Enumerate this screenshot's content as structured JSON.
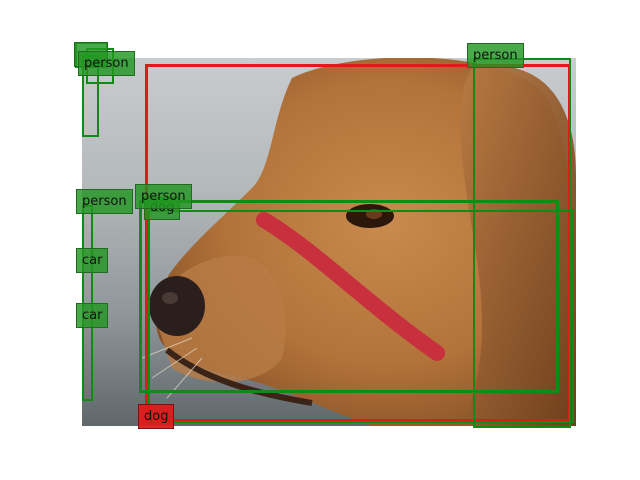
{
  "colors": {
    "dog_box": "#e01a1a",
    "person_box": "#138a13",
    "car_box": "#138a13",
    "red_tag": "#e01919",
    "green_tag": "#229622"
  },
  "detections": {
    "dog_main": {
      "label": "dog"
    },
    "dog_inner": {
      "label": "dog"
    },
    "person_right": {
      "label": "person"
    },
    "person_center": {
      "label": "person"
    },
    "person_left": {
      "label": "person"
    },
    "person_top_left": {
      "label": "person"
    },
    "car_upper": {
      "label": "car"
    },
    "car_lower": {
      "label": "car"
    }
  }
}
